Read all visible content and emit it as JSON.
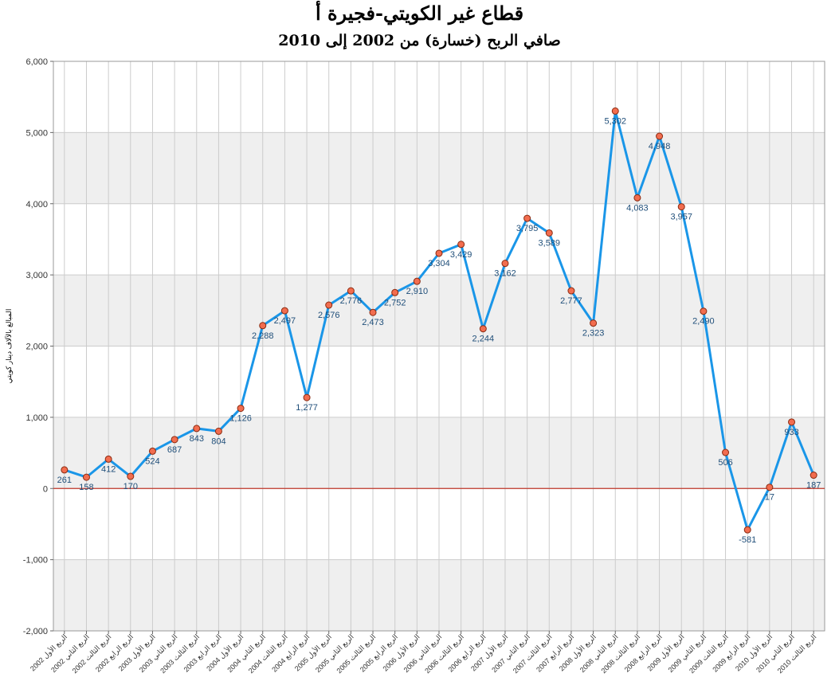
{
  "chart_data": {
    "type": "line",
    "title": "قطاع غير الكويتي-فجيرة أ",
    "subtitle": "صافي الربح (خسارة) من 2002 إلى 2010",
    "ylabel": "المبالغ بالآلاف دينار كويتي",
    "xlabel": "",
    "ylim": [
      -2000,
      6000
    ],
    "yticks": [
      -2000,
      -1000,
      0,
      1000,
      2000,
      3000,
      4000,
      5000,
      6000
    ],
    "ytick_labels": [
      "-2,000",
      "-1,000",
      "0",
      "1,000",
      "2,000",
      "3,000",
      "4,000",
      "5,000",
      "6,000"
    ],
    "grid": true,
    "zero_line": true,
    "categories": [
      "الربع الأول 2002",
      "الربع الثاني 2002",
      "الربع الثالث 2002",
      "الربع الرابع 2002",
      "الربع الأول 2003",
      "الربع الثاني 2003",
      "الربع الثالث 2003",
      "الربع الرابع 2003",
      "الربع الأول 2004",
      "الربع الثاني 2004",
      "الربع الثالث 2004",
      "الربع الرابع 2004",
      "الربع الأول 2005",
      "الربع الثاني 2005",
      "الربع الثالث 2005",
      "الربع الرابع 2005",
      "الربع الأول 2006",
      "الربع الثاني 2006",
      "الربع الثالث 2006",
      "الربع الرابع 2006",
      "الربع الأول 2007",
      "الربع الثاني 2007",
      "الربع الثالث 2007",
      "الربع الرابع 2007",
      "الربع الأول 2008",
      "الربع الثاني 2008",
      "الربع الثالث 2008",
      "الربع الرابع 2008",
      "الربع الأول 2009",
      "الربع الثاني 2009",
      "الربع الثالث 2009",
      "الربع الرابع 2009",
      "الربع الأول 2010",
      "الربع الثاني 2010",
      "الربع الثالث 2010"
    ],
    "values": [
      261,
      158,
      412,
      170,
      524,
      687,
      843,
      804,
      1126,
      2288,
      2497,
      1277,
      2576,
      2776,
      2473,
      2752,
      2910,
      3304,
      3429,
      2244,
      3162,
      3795,
      3589,
      2777,
      2323,
      5302,
      4083,
      4948,
      3957,
      2490,
      506,
      -581,
      17,
      933,
      187
    ],
    "value_labels": [
      "261",
      "158",
      "412",
      "170",
      "524",
      "687",
      "843",
      "804",
      "1,126",
      "2,288",
      "2,497",
      "1,277",
      "2,576",
      "2,776",
      "2,473",
      "2,752",
      "2,910",
      "3,304",
      "3,429",
      "2,244",
      "3,162",
      "3,795",
      "3,589",
      "2,777",
      "2,323",
      "5,302",
      "4,083",
      "4,948",
      "3,957",
      "2,490",
      "506",
      "-581",
      "17",
      "933",
      "187"
    ],
    "colors": {
      "line": "#1a96e8",
      "marker_fill": "#f26d4f",
      "marker_stroke": "#8a2a10",
      "zero_line": "#c0392b",
      "band": "#efefef",
      "grid": "#cccccc"
    }
  }
}
